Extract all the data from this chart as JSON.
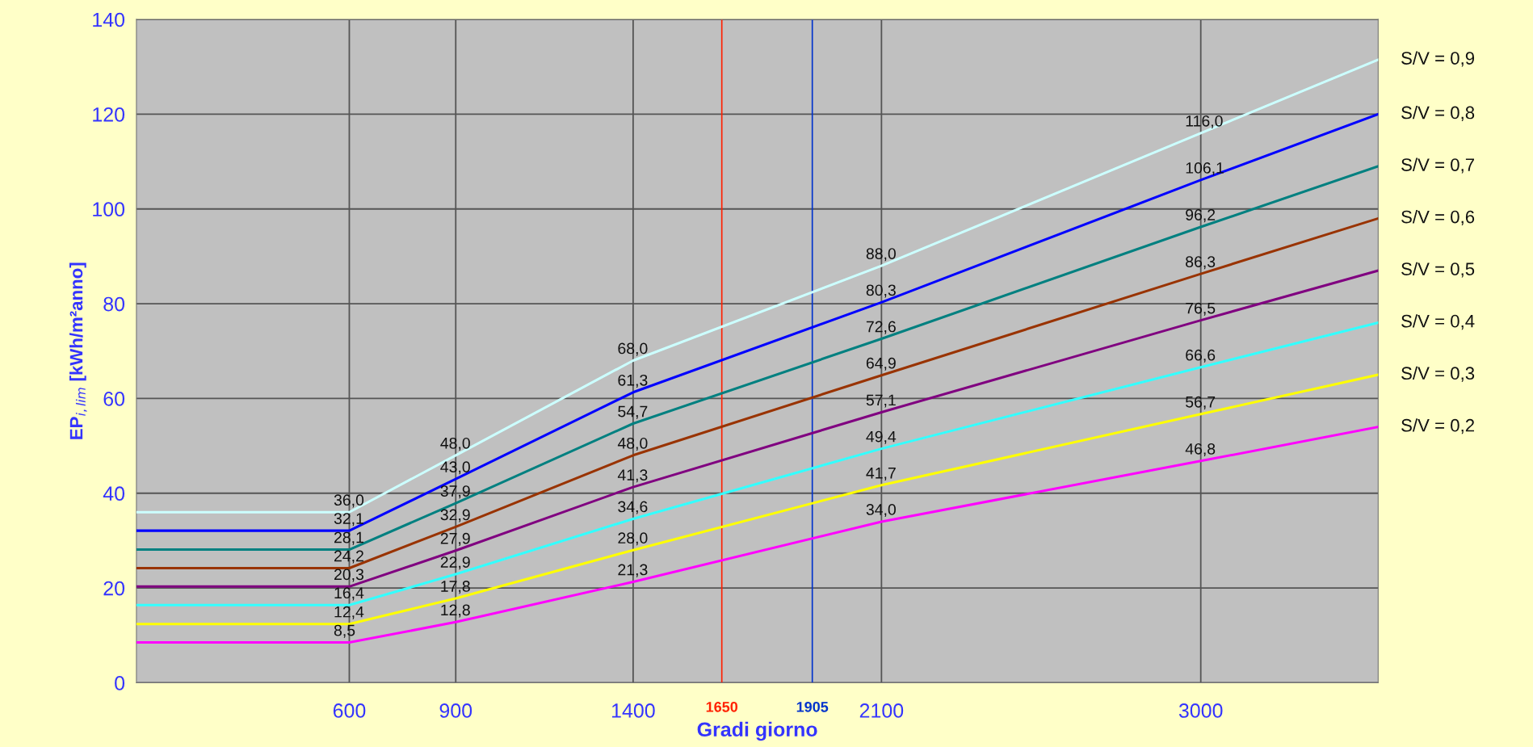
{
  "chart_data": {
    "type": "line",
    "xlabel": "Gradi giorno",
    "ylabel": "EP$_{i,lim}$ [kWh/m²anno]",
    "x": [
      0,
      600,
      900,
      1400,
      2100,
      3000,
      3500
    ],
    "xlim": [
      0,
      3500
    ],
    "xticks": [
      600,
      900,
      1400,
      2100,
      3000
    ],
    "ylim": [
      0,
      140
    ],
    "yticks": [
      0,
      20,
      40,
      60,
      80,
      100,
      120,
      140
    ],
    "grid": true,
    "legend": false,
    "marker": "none",
    "line_style": "solid",
    "series": [
      {
        "name": "S/V = 0,9",
        "color": "#ccffff",
        "values": [
          36.0,
          36.0,
          48.0,
          68.0,
          88.0,
          116.0,
          131.5
        ],
        "value_labels": [
          null,
          "36,0",
          "48,0",
          "68,0",
          "88,0",
          "116,0",
          null
        ]
      },
      {
        "name": "S/V = 0,8",
        "color": "#0000ff",
        "values": [
          32.1,
          32.1,
          43.0,
          61.3,
          80.3,
          106.1,
          120
        ],
        "value_labels": [
          null,
          "32,1",
          "43,0",
          "61,3",
          "80,3",
          "106,1",
          null
        ]
      },
      {
        "name": "S/V = 0,7",
        "color": "#008080",
        "values": [
          28.1,
          28.1,
          37.9,
          54.7,
          72.6,
          96.2,
          109
        ],
        "value_labels": [
          null,
          "28,1",
          "37,9",
          "54,7",
          "72,6",
          "96,2",
          null
        ]
      },
      {
        "name": "S/V = 0,6",
        "color": "#993300",
        "values": [
          24.2,
          24.2,
          32.9,
          48.0,
          64.9,
          86.3,
          98
        ],
        "value_labels": [
          null,
          "24,2",
          "32,9",
          "48,0",
          "64,9",
          "86,3",
          null
        ]
      },
      {
        "name": "S/V = 0,5",
        "color": "#800080",
        "values": [
          20.3,
          20.3,
          27.9,
          41.3,
          57.1,
          76.5,
          87
        ],
        "value_labels": [
          null,
          "20,3",
          "27,9",
          "41,3",
          "57,1",
          "76,5",
          null
        ]
      },
      {
        "name": "S/V = 0,4",
        "color": "#33ffff",
        "values": [
          16.4,
          16.4,
          22.9,
          34.6,
          49.4,
          66.6,
          76
        ],
        "value_labels": [
          null,
          "16,4",
          "22,9",
          "34,6",
          "49,4",
          "66,6",
          null
        ]
      },
      {
        "name": "S/V = 0,3",
        "color": "#ffff00",
        "values": [
          12.4,
          12.4,
          17.8,
          28.0,
          41.7,
          56.7,
          65
        ],
        "value_labels": [
          null,
          "12,4",
          "17,8",
          "28,0",
          "41,7",
          "56,7",
          null
        ]
      },
      {
        "name": "S/V = 0,2",
        "color": "#ff00ff",
        "values": [
          8.5,
          8.5,
          12.8,
          21.3,
          34.0,
          46.8,
          54
        ],
        "value_labels": [
          null,
          "8,5",
          "12,8",
          "21,3",
          "34,0",
          "46,8",
          null
        ]
      }
    ],
    "ref_lines": [
      {
        "axis": "x",
        "value": 1650,
        "label": "1650",
        "color": "#ff2000"
      },
      {
        "axis": "x",
        "value": 1905,
        "label": "1905",
        "color": "#0033cc"
      }
    ]
  }
}
